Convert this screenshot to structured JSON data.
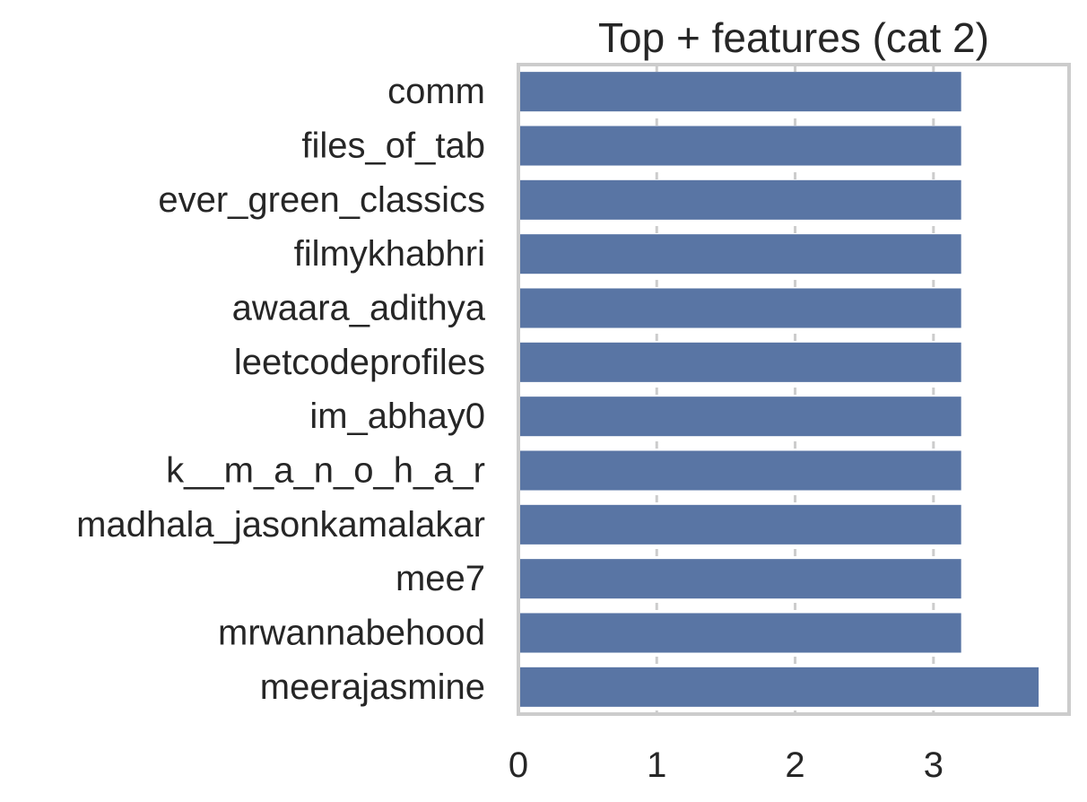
{
  "chart_data": {
    "type": "bar",
    "orientation": "horizontal",
    "title": "Top + features (cat 2)",
    "xlabel": "",
    "ylabel": "",
    "categories": [
      "comm",
      "files_of_tab",
      "ever_green_classics",
      "filmykhabhri",
      "awaara_adithya",
      "leetcodeprofiles",
      "im_abhay0",
      "k__m_a_n_o_h_a_r",
      "madhala_jasonkamalakar",
      "mee7",
      "mrwannabehood",
      "meerajasmine"
    ],
    "values": [
      3.2,
      3.2,
      3.2,
      3.2,
      3.2,
      3.2,
      3.2,
      3.2,
      3.2,
      3.2,
      3.2,
      3.76
    ],
    "xlim": [
      0,
      3.98
    ],
    "xticks": [
      0,
      1,
      2,
      3
    ],
    "xtick_labels": [
      "0",
      "1",
      "2",
      "3"
    ],
    "grid": "vertical dashed",
    "legend": "none",
    "colors": {
      "bar": "#5975a4",
      "grid": "#cccccc",
      "frame": "#cccccc",
      "text": "#262626"
    }
  }
}
